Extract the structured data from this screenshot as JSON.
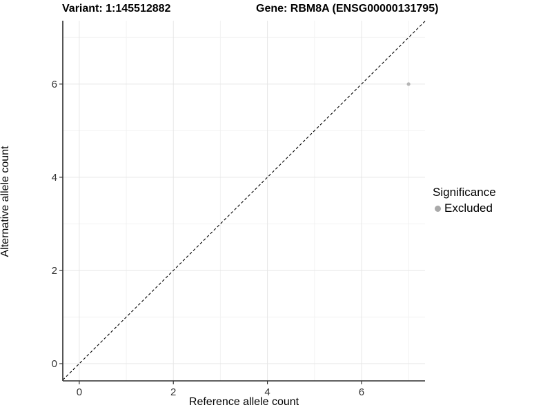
{
  "chart_data": {
    "type": "scatter",
    "title_left": "Variant: 1:145512882",
    "title_right": "Gene: RBM8A (ENSG00000131795)",
    "xlabel": "Reference allele count",
    "ylabel": "Alternative allele count",
    "xlim": [
      -0.35,
      7.35
    ],
    "ylim": [
      -0.37,
      7.36
    ],
    "xticks": [
      0,
      2,
      4,
      6
    ],
    "yticks": [
      0,
      2,
      4,
      6
    ],
    "x_minor_gridlines": [
      1,
      3,
      5,
      7
    ],
    "y_minor_gridlines": [
      1,
      3,
      5,
      7
    ],
    "grid": "major and minor, light gray on white",
    "reference_line": {
      "type": "identity y=x",
      "style": "dashed",
      "color": "#000000",
      "from": [
        -0.35,
        -0.35
      ],
      "to": [
        7.35,
        7.35
      ]
    },
    "series": [
      {
        "name": "Excluded",
        "color": "#b5b5b5",
        "point_radius": 2.6,
        "points": [
          {
            "x": 7,
            "y": 6
          }
        ]
      }
    ],
    "legend": {
      "title": "Significance",
      "position": "right",
      "items": [
        {
          "label": "Excluded",
          "color": "#a9a9a9"
        }
      ]
    },
    "colors": {
      "axis_line": "#2b2b2b",
      "tick_mark": "#333333",
      "tick_label": "#333333",
      "grid_major": "#e6e6e6",
      "grid_minor": "#f2f2f2",
      "background": "#ffffff"
    }
  }
}
